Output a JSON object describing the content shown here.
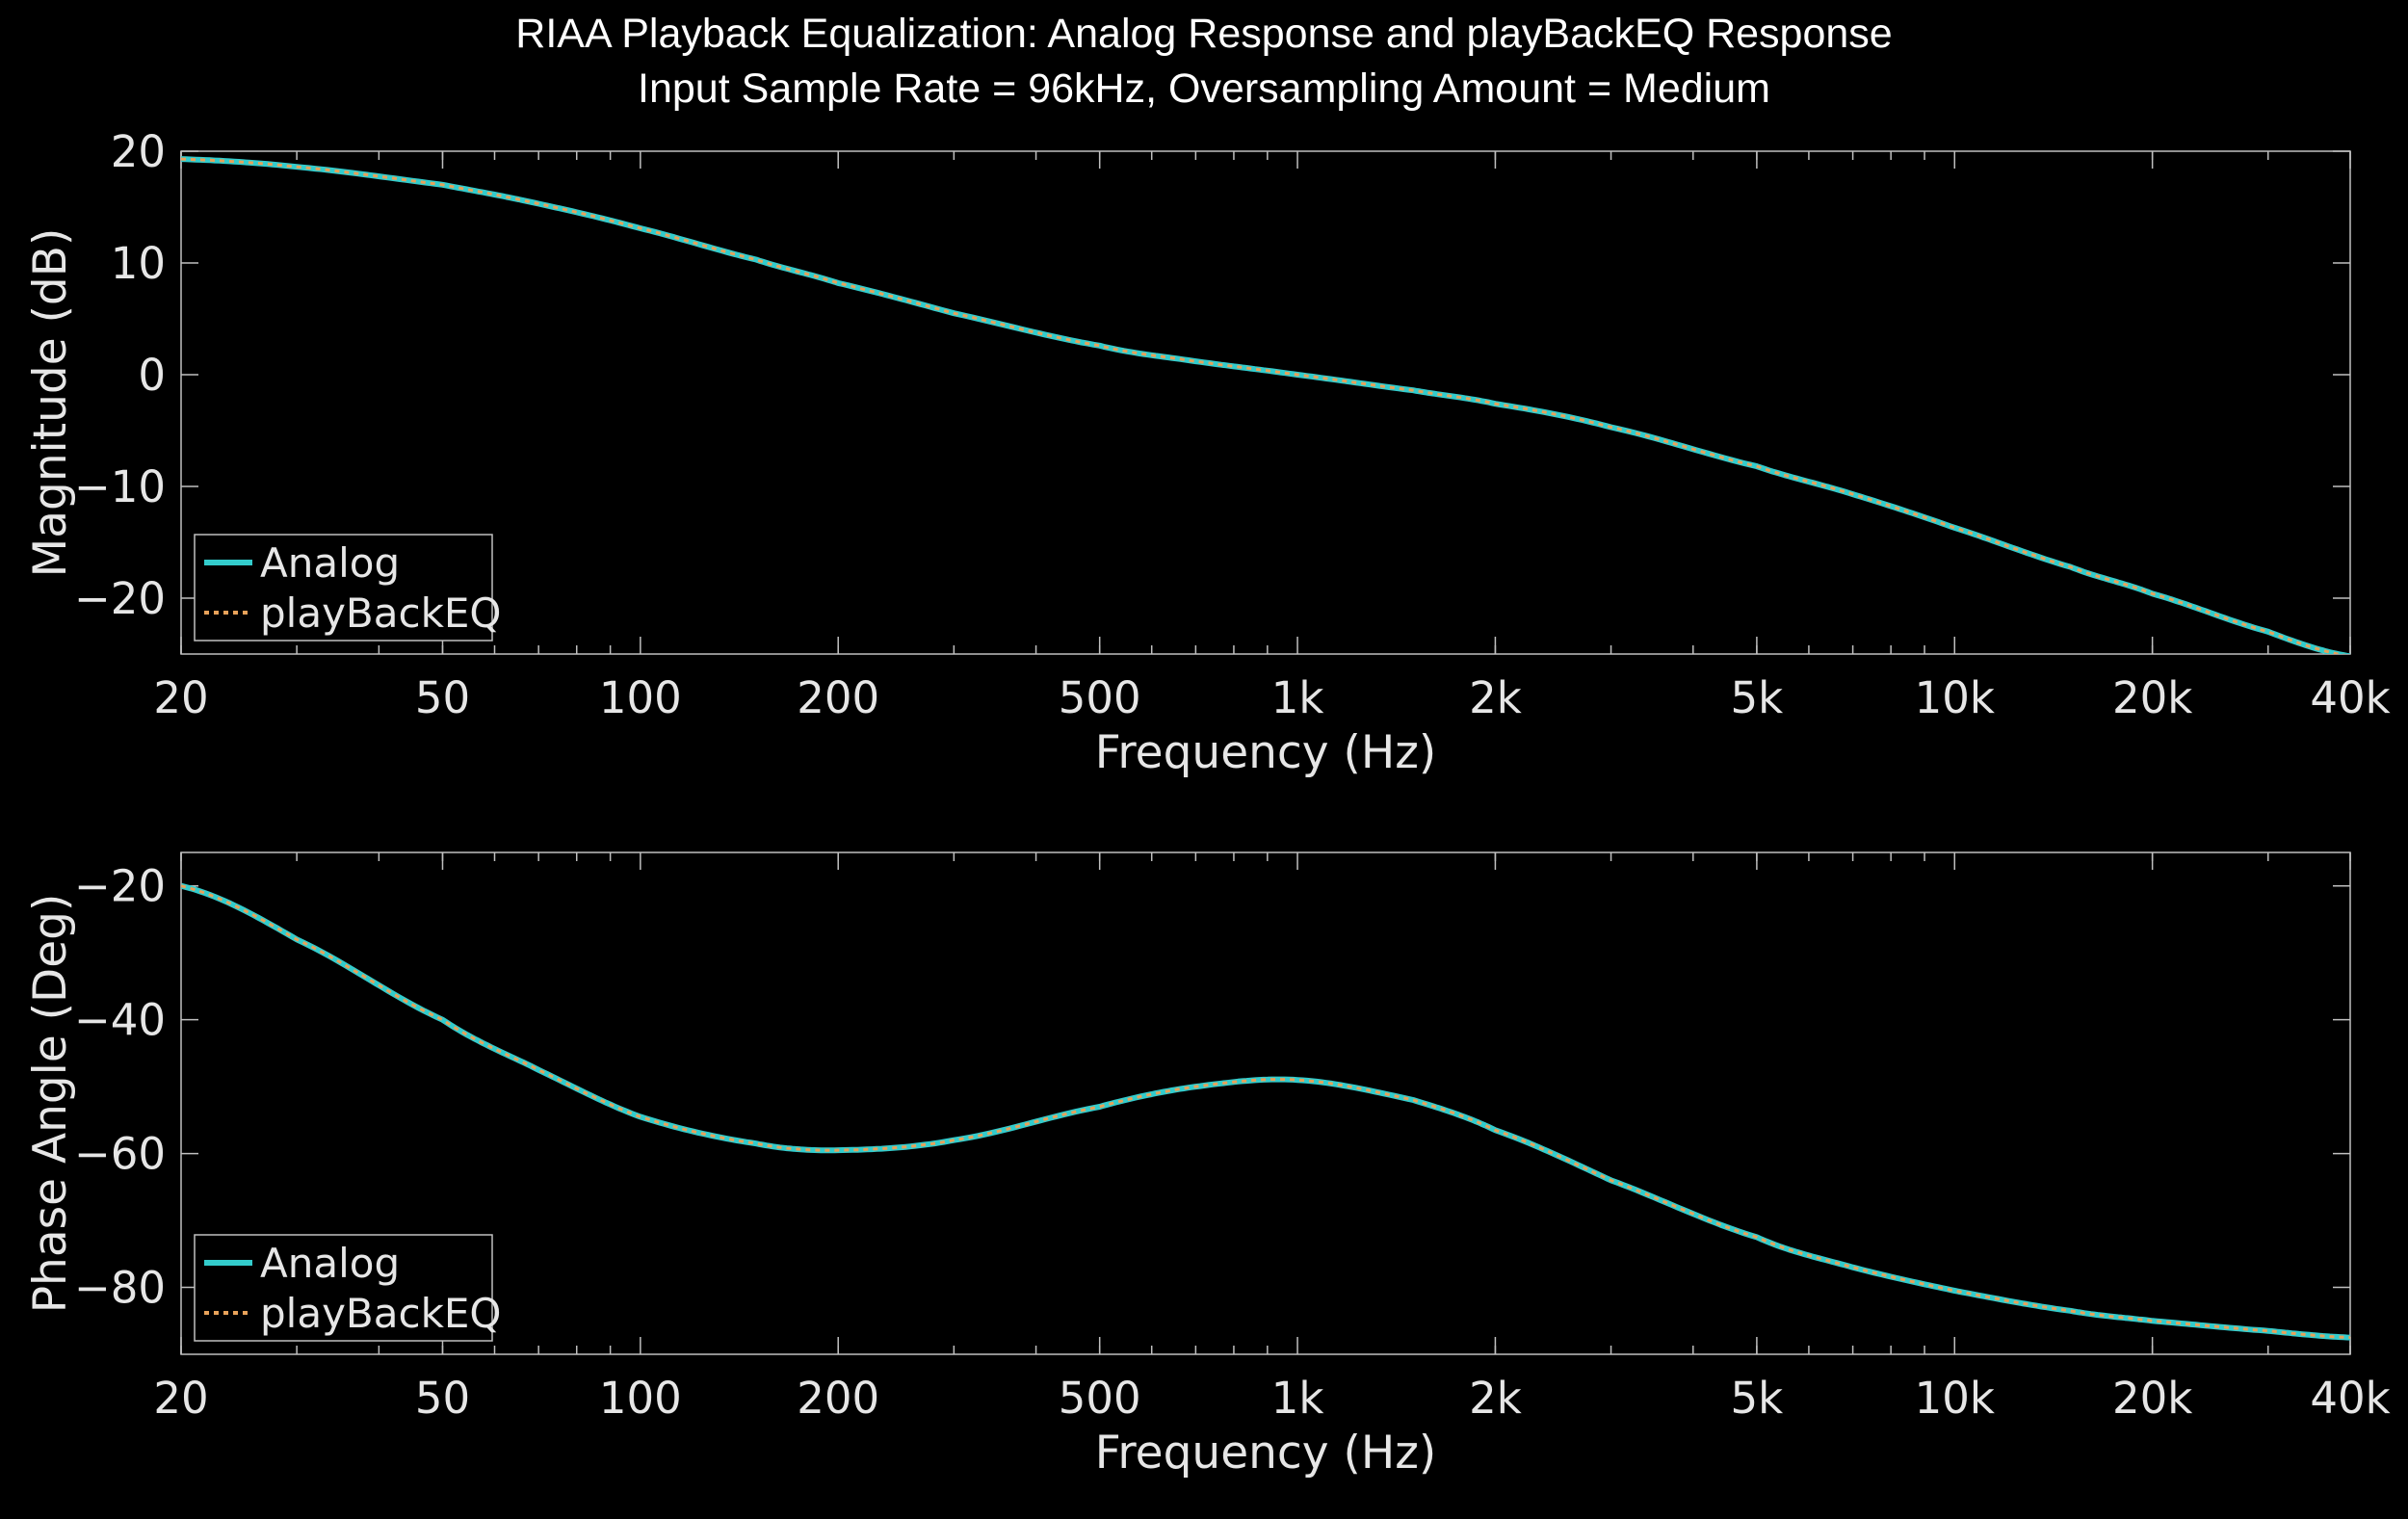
{
  "figure": {
    "title_lines": [
      "RIAA Playback Equalization: Analog Response and playBackEQ Response",
      "Input Sample Rate = 96kHz, Oversampling Amount = Medium"
    ],
    "background": "#000000",
    "axis_color": "#bfbfbf",
    "text_color": "#e6e6e6"
  },
  "chart_data": [
    {
      "type": "line",
      "xscale": "log",
      "xlabel": "Frequency (Hz)",
      "ylabel": "Magnitude (dB)",
      "xlim": [
        20,
        40000
      ],
      "ylim": [
        -25,
        20
      ],
      "xticks": [
        20,
        50,
        100,
        200,
        500,
        1000,
        2000,
        5000,
        10000,
        20000,
        40000
      ],
      "xtick_labels": [
        "20",
        "50",
        "100",
        "200",
        "500",
        "1k",
        "2k",
        "5k",
        "10k",
        "20k",
        "40k"
      ],
      "yticks": [
        -20,
        -10,
        0,
        10,
        20
      ],
      "ytick_labels": [
        "−20",
        "−10",
        "0",
        "10",
        "20"
      ],
      "legend": "bottom-left",
      "x": [
        20,
        30,
        50,
        70,
        100,
        150,
        200,
        300,
        500,
        700,
        1000,
        1500,
        2000,
        3000,
        5000,
        7000,
        10000,
        15000,
        20000,
        30000,
        40000
      ],
      "series": [
        {
          "name": "Analog",
          "color": "#33cccc",
          "style": "solid",
          "values": [
            19.3,
            18.6,
            17.0,
            15.3,
            13.1,
            10.3,
            8.2,
            5.5,
            2.6,
            1.2,
            0.0,
            -1.4,
            -2.6,
            -4.7,
            -8.2,
            -10.7,
            -13.7,
            -17.2,
            -19.6,
            -23.0,
            -25.2
          ]
        },
        {
          "name": "playBackEQ",
          "color": "#e8a25a",
          "style": "dotted",
          "values": [
            19.3,
            18.6,
            17.0,
            15.3,
            13.1,
            10.3,
            8.2,
            5.5,
            2.6,
            1.2,
            0.0,
            -1.4,
            -2.6,
            -4.7,
            -8.2,
            -10.7,
            -13.7,
            -17.2,
            -19.6,
            -23.0,
            -25.2
          ]
        }
      ]
    },
    {
      "type": "line",
      "xscale": "log",
      "xlabel": "Frequency (Hz)",
      "ylabel": "Phase Angle (Deg)",
      "xlim": [
        20,
        40000
      ],
      "ylim": [
        -90,
        -15
      ],
      "xticks": [
        20,
        50,
        100,
        200,
        500,
        1000,
        2000,
        5000,
        10000,
        20000,
        40000
      ],
      "xtick_labels": [
        "20",
        "50",
        "100",
        "200",
        "500",
        "1k",
        "2k",
        "5k",
        "10k",
        "20k",
        "40k"
      ],
      "yticks": [
        -80,
        -60,
        -40,
        -20
      ],
      "ytick_labels": [
        "−80",
        "−60",
        "−40",
        "−20"
      ],
      "legend": "bottom-left",
      "x": [
        20,
        30,
        50,
        70,
        100,
        150,
        200,
        300,
        500,
        700,
        1000,
        1500,
        2000,
        3000,
        5000,
        7000,
        10000,
        15000,
        20000,
        30000,
        40000
      ],
      "series": [
        {
          "name": "Analog",
          "color": "#33cccc",
          "style": "solid",
          "values": [
            -20.0,
            -28.0,
            -40.0,
            -47.5,
            -54.5,
            -58.5,
            -59.5,
            -58.0,
            -53.0,
            -50.0,
            -49.0,
            -52.0,
            -56.5,
            -64.0,
            -72.5,
            -77.0,
            -80.5,
            -83.5,
            -85.0,
            -86.5,
            -87.5
          ]
        },
        {
          "name": "playBackEQ",
          "color": "#e8a25a",
          "style": "dotted",
          "values": [
            -20.0,
            -28.0,
            -40.0,
            -47.5,
            -54.5,
            -58.5,
            -59.5,
            -58.0,
            -53.0,
            -50.0,
            -49.0,
            -52.0,
            -56.5,
            -64.0,
            -72.5,
            -77.0,
            -80.5,
            -83.5,
            -85.0,
            -86.5,
            -87.5
          ]
        }
      ]
    }
  ]
}
